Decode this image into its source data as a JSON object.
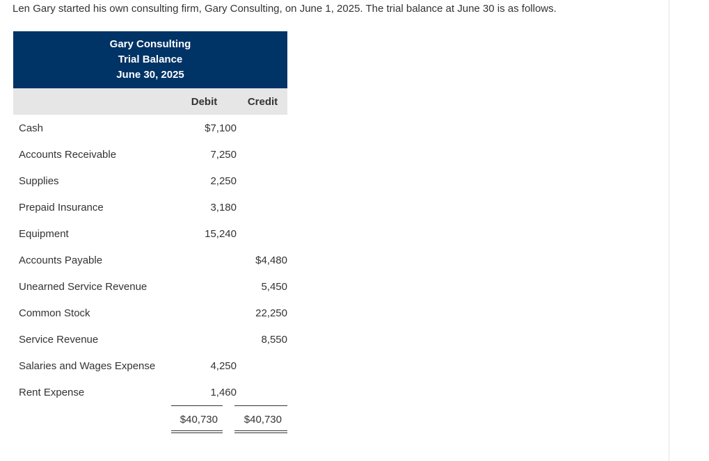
{
  "intro_text": "Len Gary started his own consulting firm, Gary Consulting, on June 1, 2025. The trial balance at June 30 is as follows.",
  "statement": {
    "company": "Gary Consulting",
    "title": "Trial Balance",
    "date": "June 30, 2025",
    "header_color": "#003366",
    "columns": {
      "debit": "Debit",
      "credit": "Credit"
    },
    "rows": [
      {
        "account": "Cash",
        "debit": "$7,100",
        "credit": ""
      },
      {
        "account": "Accounts Receivable",
        "debit": "7,250",
        "credit": ""
      },
      {
        "account": "Supplies",
        "debit": "2,250",
        "credit": ""
      },
      {
        "account": "Prepaid Insurance",
        "debit": "3,180",
        "credit": ""
      },
      {
        "account": "Equipment",
        "debit": "15,240",
        "credit": ""
      },
      {
        "account": "Accounts Payable",
        "debit": "",
        "credit": "$4,480"
      },
      {
        "account": "Unearned Service Revenue",
        "debit": "",
        "credit": "5,450"
      },
      {
        "account": "Common Stock",
        "debit": "",
        "credit": "22,250"
      },
      {
        "account": "Service Revenue",
        "debit": "",
        "credit": "8,550"
      },
      {
        "account": "Salaries and Wages Expense",
        "debit": "4,250",
        "credit": ""
      },
      {
        "account": "Rent Expense",
        "debit": "1,460",
        "credit": ""
      }
    ],
    "totals": {
      "debit": "$40,730",
      "credit": "$40,730"
    }
  }
}
